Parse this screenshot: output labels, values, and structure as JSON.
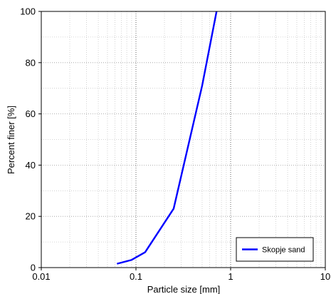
{
  "chart_data": {
    "type": "line",
    "title": "",
    "xlabel": "Particle size [mm]",
    "ylabel": "Percent finer [%]",
    "x_scale": "log",
    "xlim": [
      0.01,
      10
    ],
    "ylim": [
      0,
      100
    ],
    "x_ticks": [
      {
        "value": 0.01,
        "label": "0.01"
      },
      {
        "value": 0.1,
        "label": "0.1"
      },
      {
        "value": 1,
        "label": "1"
      },
      {
        "value": 10,
        "label": "10"
      }
    ],
    "y_ticks": [
      {
        "value": 0,
        "label": "0"
      },
      {
        "value": 20,
        "label": "20"
      },
      {
        "value": 40,
        "label": "40"
      },
      {
        "value": 60,
        "label": "60"
      },
      {
        "value": 80,
        "label": "80"
      },
      {
        "value": 100,
        "label": "100"
      }
    ],
    "grid": true,
    "legend_position": "bottom-right",
    "series": [
      {
        "name": "Skopje sand",
        "color": "#0000ff",
        "points": [
          {
            "x": 0.063,
            "y": 1.5
          },
          {
            "x": 0.09,
            "y": 3
          },
          {
            "x": 0.125,
            "y": 6
          },
          {
            "x": 0.25,
            "y": 23
          },
          {
            "x": 0.5,
            "y": 71
          },
          {
            "x": 0.71,
            "y": 100
          }
        ]
      }
    ]
  }
}
